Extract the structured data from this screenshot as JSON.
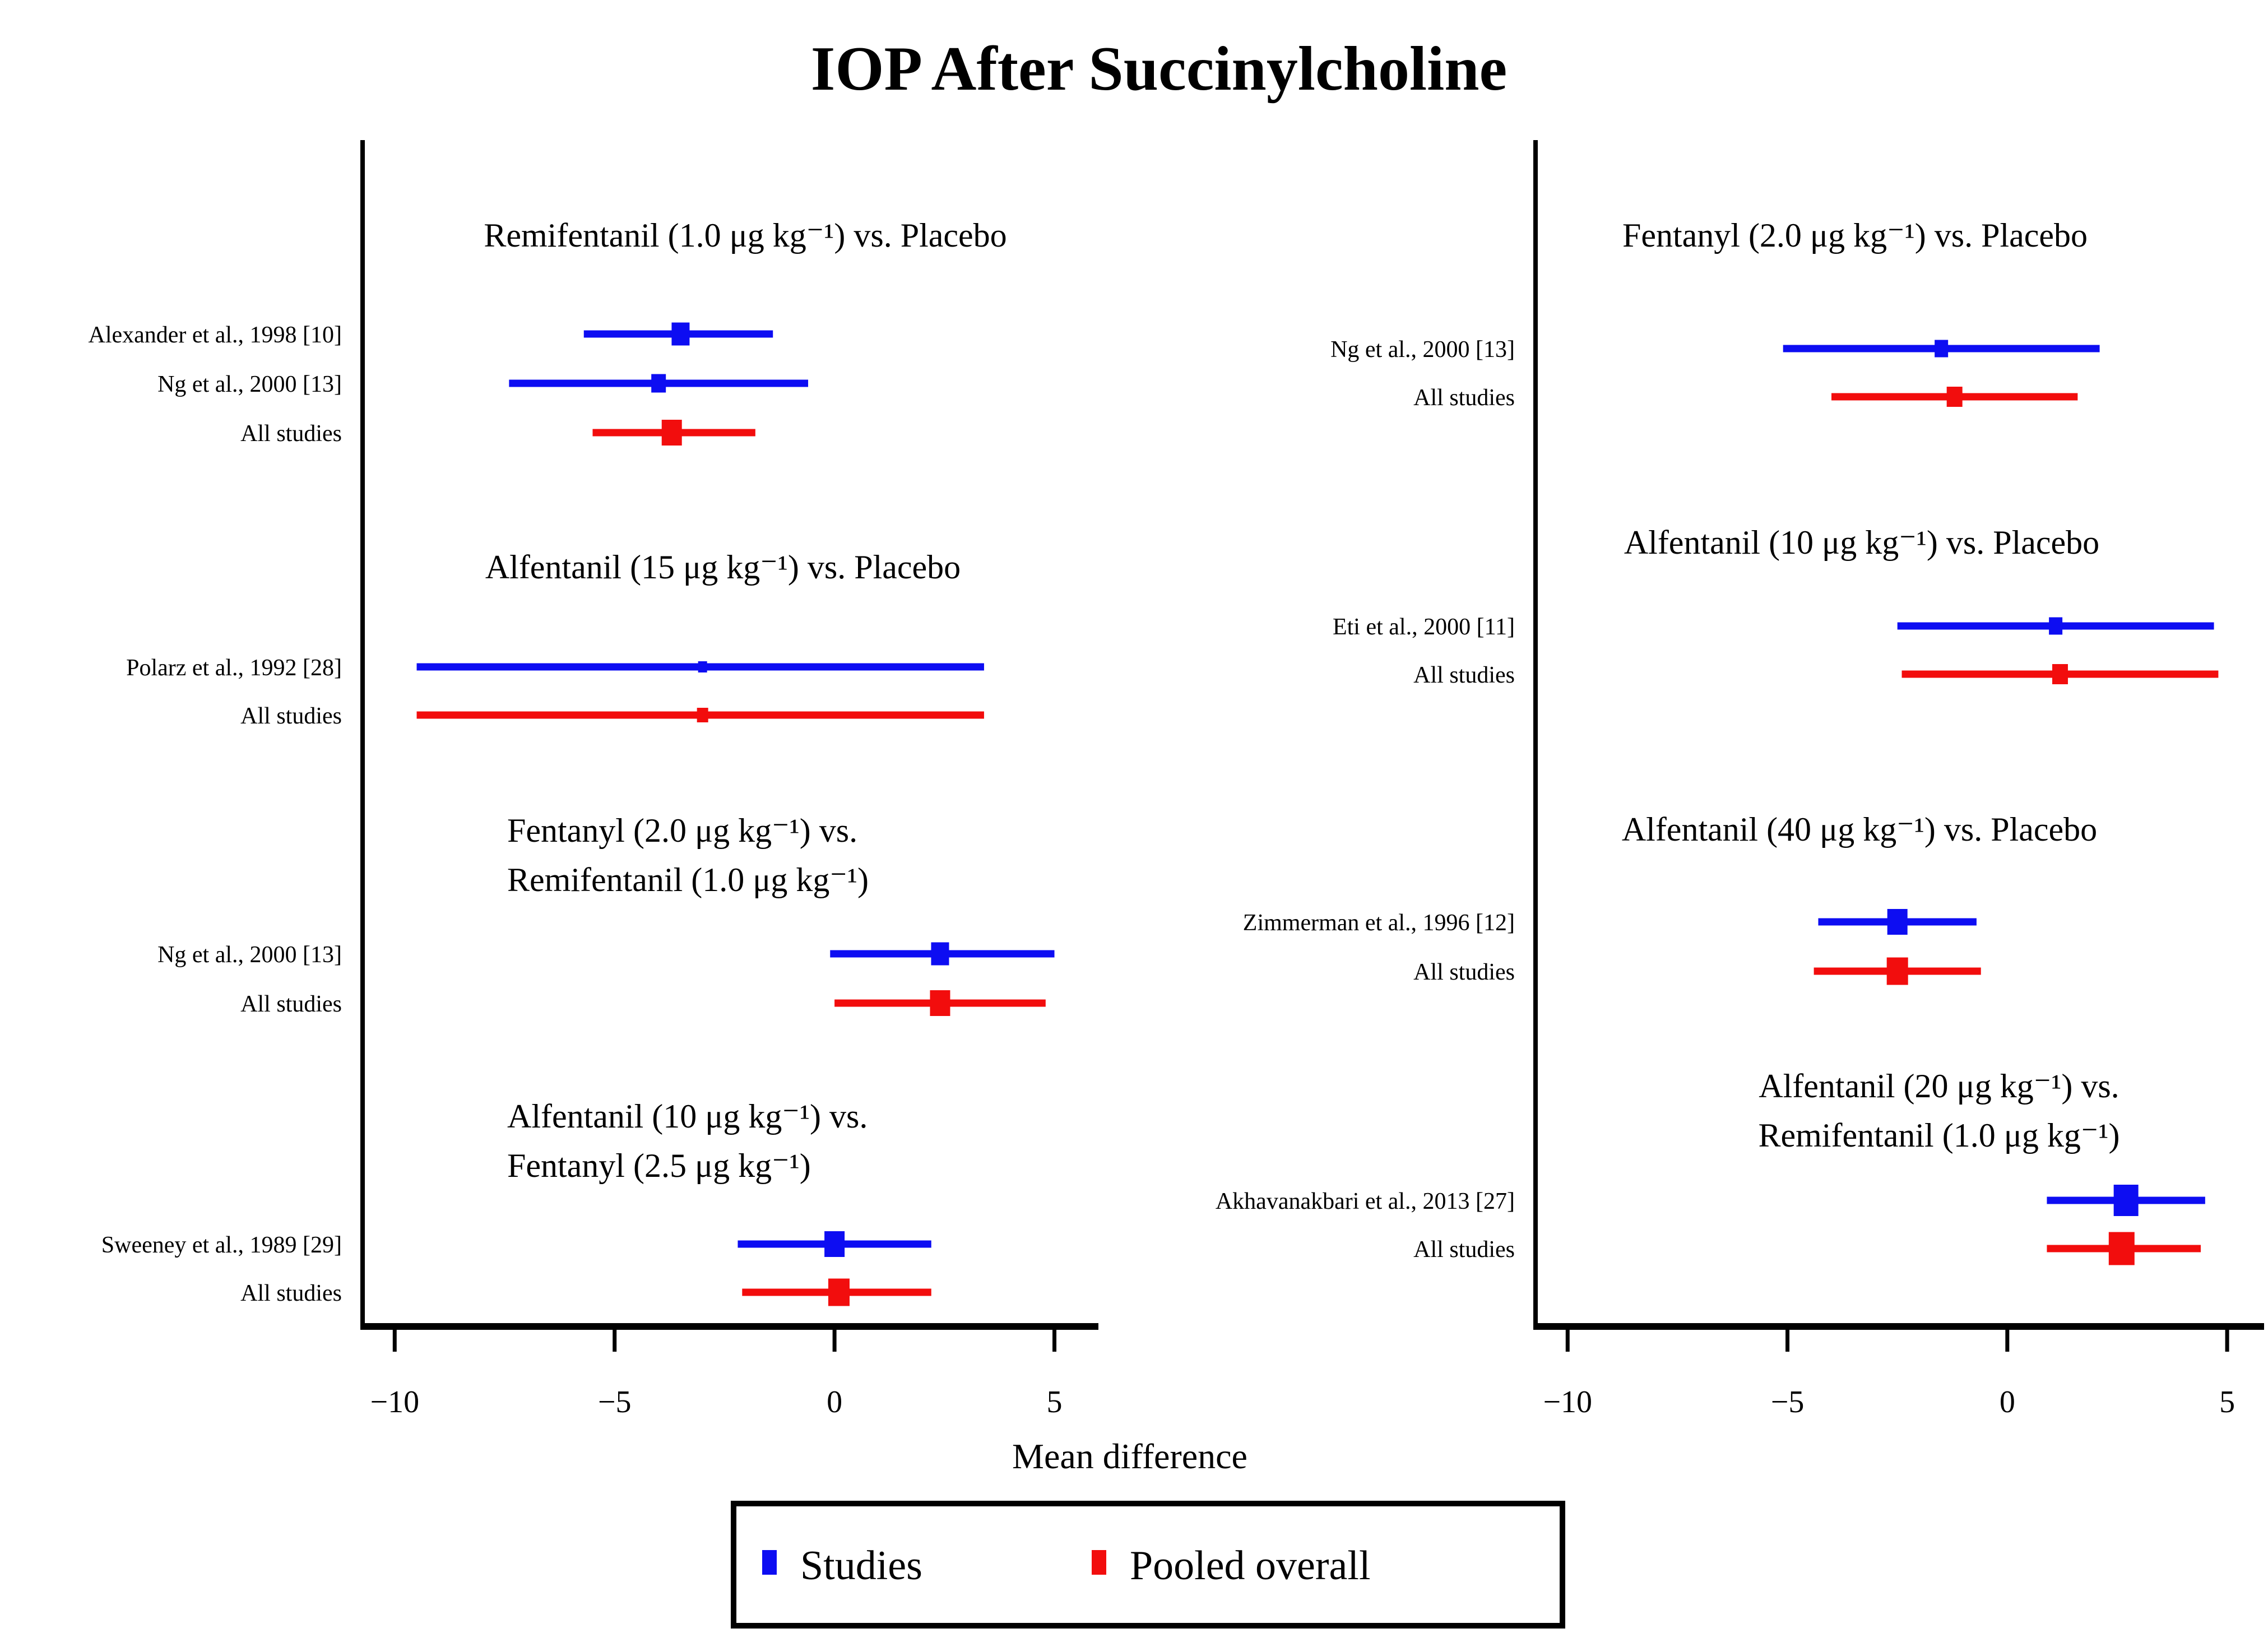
{
  "title": "IOP After Succinylcholine",
  "xlabel": "Mean difference",
  "legend": {
    "position": "bottom-center",
    "items": [
      {
        "label": "Studies",
        "color": "#0d0df2"
      },
      {
        "label": "Pooled overall",
        "color": "#f20d0d"
      }
    ]
  },
  "colors": {
    "study": "#0d0df2",
    "pooled": "#f20d0d",
    "axis": "#000000",
    "background": "#ffffff"
  },
  "chart_data": {
    "type": "forest",
    "title": "IOP After Succinylcholine",
    "xlabel": "Mean difference",
    "x_ticks": [
      -10,
      -5,
      0,
      5
    ],
    "grid": false,
    "legend_position": "bottom-center",
    "legend_entries": [
      "Studies",
      "Pooled overall"
    ],
    "panels": [
      {
        "side": "left",
        "xlim": [
          -10.73,
          6.0
        ],
        "groups": [
          {
            "title_lines": [
              "Remifentanil (1.0 μg kg⁻¹) vs. Placebo"
            ],
            "rows": [
              {
                "label": "Alexander et al., 1998 [10]",
                "type": "study",
                "mean": -3.5,
                "ci_low": -5.7,
                "ci_high": -1.4,
                "marker_size": 32
              },
              {
                "label": "Ng et al., 2000 [13]",
                "type": "study",
                "mean": -4.0,
                "ci_low": -7.4,
                "ci_high": -0.6,
                "marker_size": 26
              },
              {
                "label": "All studies",
                "type": "pooled",
                "mean": -3.7,
                "ci_low": -5.5,
                "ci_high": -1.8,
                "marker_size": 36
              }
            ]
          },
          {
            "title_lines": [
              "Alfentanil (15 μg kg⁻¹) vs. Placebo"
            ],
            "rows": [
              {
                "label": "Polarz et al., 1992 [28]",
                "type": "study",
                "mean": -3.0,
                "ci_low": -9.5,
                "ci_high": 3.4,
                "marker_size": 16
              },
              {
                "label": "All studies",
                "type": "pooled",
                "mean": -3.0,
                "ci_low": -9.5,
                "ci_high": 3.4,
                "marker_size": 20
              }
            ]
          },
          {
            "title_lines": [
              "Fentanyl (2.0 μg kg⁻¹) vs.",
              "Remifentanil (1.0 μg kg⁻¹)"
            ],
            "rows": [
              {
                "label": "Ng et al., 2000 [13]",
                "type": "study",
                "mean": 2.4,
                "ci_low": -0.1,
                "ci_high": 5.0,
                "marker_size": 32
              },
              {
                "label": "All studies",
                "type": "pooled",
                "mean": 2.4,
                "ci_low": 0.0,
                "ci_high": 4.8,
                "marker_size": 36
              }
            ]
          },
          {
            "title_lines": [
              "Alfentanil (10 μg kg⁻¹) vs.",
              "Fentanyl (2.5 μg kg⁻¹)"
            ],
            "rows": [
              {
                "label": "Sweeney et al., 1989 [29]",
                "type": "study",
                "mean": 0.0,
                "ci_low": -2.2,
                "ci_high": 2.2,
                "marker_size": 36
              },
              {
                "label": "All studies",
                "type": "pooled",
                "mean": 0.1,
                "ci_low": -2.1,
                "ci_high": 2.2,
                "marker_size": 38
              }
            ]
          }
        ]
      },
      {
        "side": "right",
        "xlim": [
          -10.73,
          5.84
        ],
        "groups": [
          {
            "title_lines": [
              "Fentanyl (2.0 μg kg⁻¹) vs. Placebo"
            ],
            "rows": [
              {
                "label": "Ng et al., 2000 [13]",
                "type": "study",
                "mean": -1.5,
                "ci_low": -5.1,
                "ci_high": 2.1,
                "marker_size": 24
              },
              {
                "label": "All studies",
                "type": "pooled",
                "mean": -1.2,
                "ci_low": -4.0,
                "ci_high": 1.6,
                "marker_size": 28
              }
            ]
          },
          {
            "title_lines": [
              "Alfentanil (10 μg kg⁻¹) vs. Placebo"
            ],
            "rows": [
              {
                "label": "Eti et al., 2000 [11]",
                "type": "study",
                "mean": 1.1,
                "ci_low": -2.5,
                "ci_high": 4.7,
                "marker_size": 24
              },
              {
                "label": "All studies",
                "type": "pooled",
                "mean": 1.2,
                "ci_low": -2.4,
                "ci_high": 4.8,
                "marker_size": 28
              }
            ]
          },
          {
            "title_lines": [
              "Alfentanil (40 μg kg⁻¹) vs. Placebo"
            ],
            "rows": [
              {
                "label": "Zimmerman et al., 1996 [12]",
                "type": "study",
                "mean": -2.5,
                "ci_low": -4.3,
                "ci_high": -0.7,
                "marker_size": 36
              },
              {
                "label": "All studies",
                "type": "pooled",
                "mean": -2.5,
                "ci_low": -4.4,
                "ci_high": -0.6,
                "marker_size": 38
              }
            ]
          },
          {
            "title_lines": [
              "Alfentanil (20 μg kg⁻¹) vs.",
              "Remifentanil (1.0 μg kg⁻¹)"
            ],
            "rows": [
              {
                "label": "Akhavanakbari et al., 2013 [27]",
                "type": "study",
                "mean": 2.7,
                "ci_low": 0.9,
                "ci_high": 4.5,
                "marker_size": 44
              },
              {
                "label": "All studies",
                "type": "pooled",
                "mean": 2.6,
                "ci_low": 0.9,
                "ci_high": 4.4,
                "marker_size": 46
              }
            ]
          }
        ]
      }
    ]
  }
}
